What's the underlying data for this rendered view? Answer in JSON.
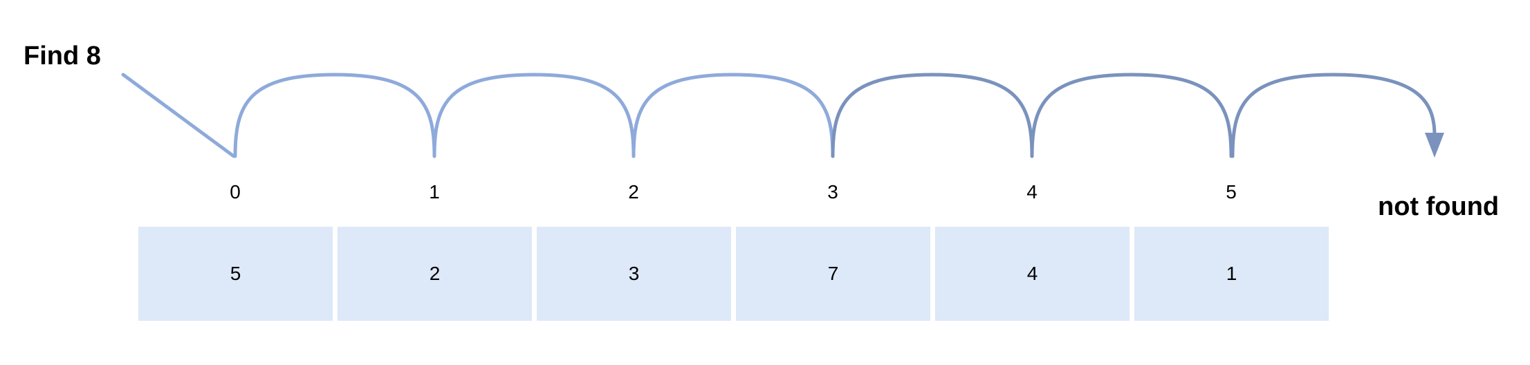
{
  "title": "Find 8",
  "result": "not found",
  "array": {
    "indices": [
      "0",
      "1",
      "2",
      "3",
      "4",
      "5"
    ],
    "values": [
      "5",
      "2",
      "3",
      "7",
      "4",
      "1"
    ]
  },
  "colors": {
    "cell_fill": "#dde8f8",
    "arrow_light": "#8eaadb",
    "arrow_dark": "#7a92bd"
  }
}
